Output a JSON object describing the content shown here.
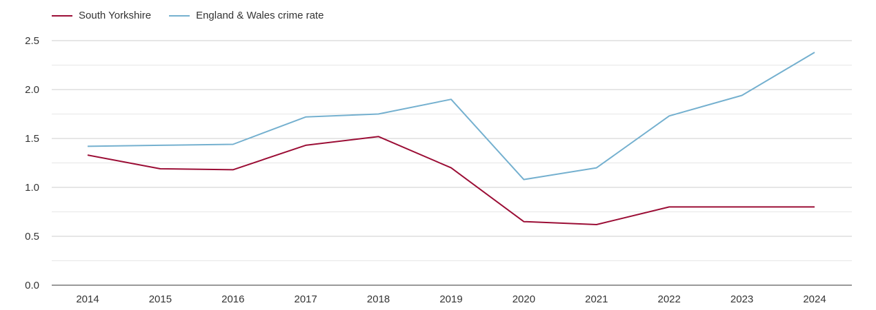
{
  "chart_data": {
    "type": "line",
    "title": "",
    "xlabel": "",
    "ylabel": "",
    "categories": [
      "2014",
      "2015",
      "2016",
      "2017",
      "2018",
      "2019",
      "2020",
      "2021",
      "2022",
      "2023",
      "2024"
    ],
    "ylim": [
      0,
      2.5
    ],
    "yticks": [
      "0.0",
      "0.5",
      "1.0",
      "1.5",
      "2.0",
      "2.5"
    ],
    "grid": true,
    "legend_position": "top-left",
    "series": [
      {
        "name": "South Yorkshire",
        "color": "#9b0d35",
        "values": [
          1.33,
          1.19,
          1.18,
          1.43,
          1.52,
          1.2,
          0.65,
          0.62,
          0.8,
          0.8,
          0.8
        ]
      },
      {
        "name": "England & Wales crime rate",
        "color": "#74b0cf",
        "values": [
          1.42,
          1.43,
          1.44,
          1.72,
          1.75,
          1.9,
          1.08,
          1.2,
          1.73,
          1.94,
          2.38
        ]
      }
    ]
  }
}
